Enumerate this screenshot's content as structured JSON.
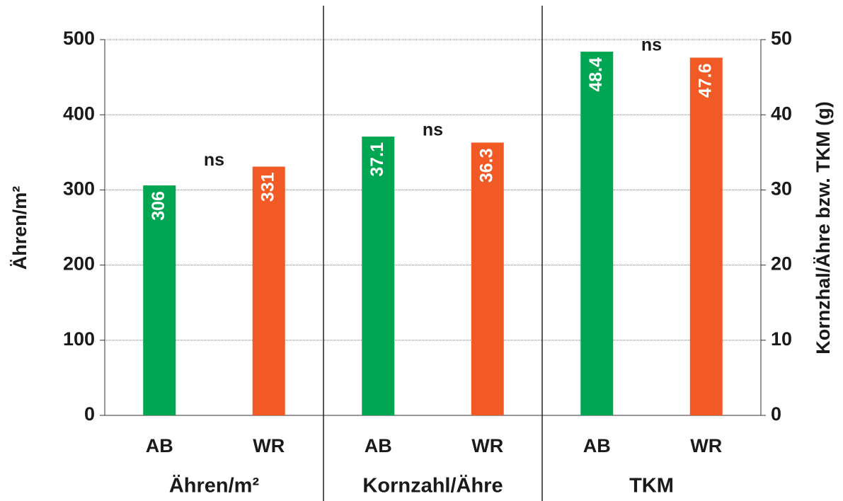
{
  "chart_data": {
    "type": "bar",
    "ylabel": "Ähren/m²",
    "y2label": "Kornzhal/Ähre bzw. TKM (g)",
    "groups": [
      "Ähren/m²",
      "Kornzahl/Ähre",
      "TKM"
    ],
    "annotations": [
      "ns",
      "ns",
      "ns"
    ],
    "categories": [
      "AB",
      "WR",
      "AB",
      "WR",
      "AB",
      "WR"
    ],
    "values": [
      306,
      331,
      37.1,
      36.3,
      48.4,
      47.6
    ],
    "axes": [
      "y",
      "y",
      "y2",
      "y2",
      "y2",
      "y2"
    ],
    "colors": [
      "#00a651",
      "#f15a24",
      "#00a651",
      "#f15a24",
      "#00a651",
      "#f15a24"
    ],
    "ylim": [
      0,
      500
    ],
    "yticks": [
      0,
      100,
      200,
      300,
      400,
      500
    ],
    "y2lim": [
      0,
      50
    ],
    "y2ticks": [
      0,
      10,
      20,
      30,
      40,
      50
    ],
    "grid": true
  }
}
